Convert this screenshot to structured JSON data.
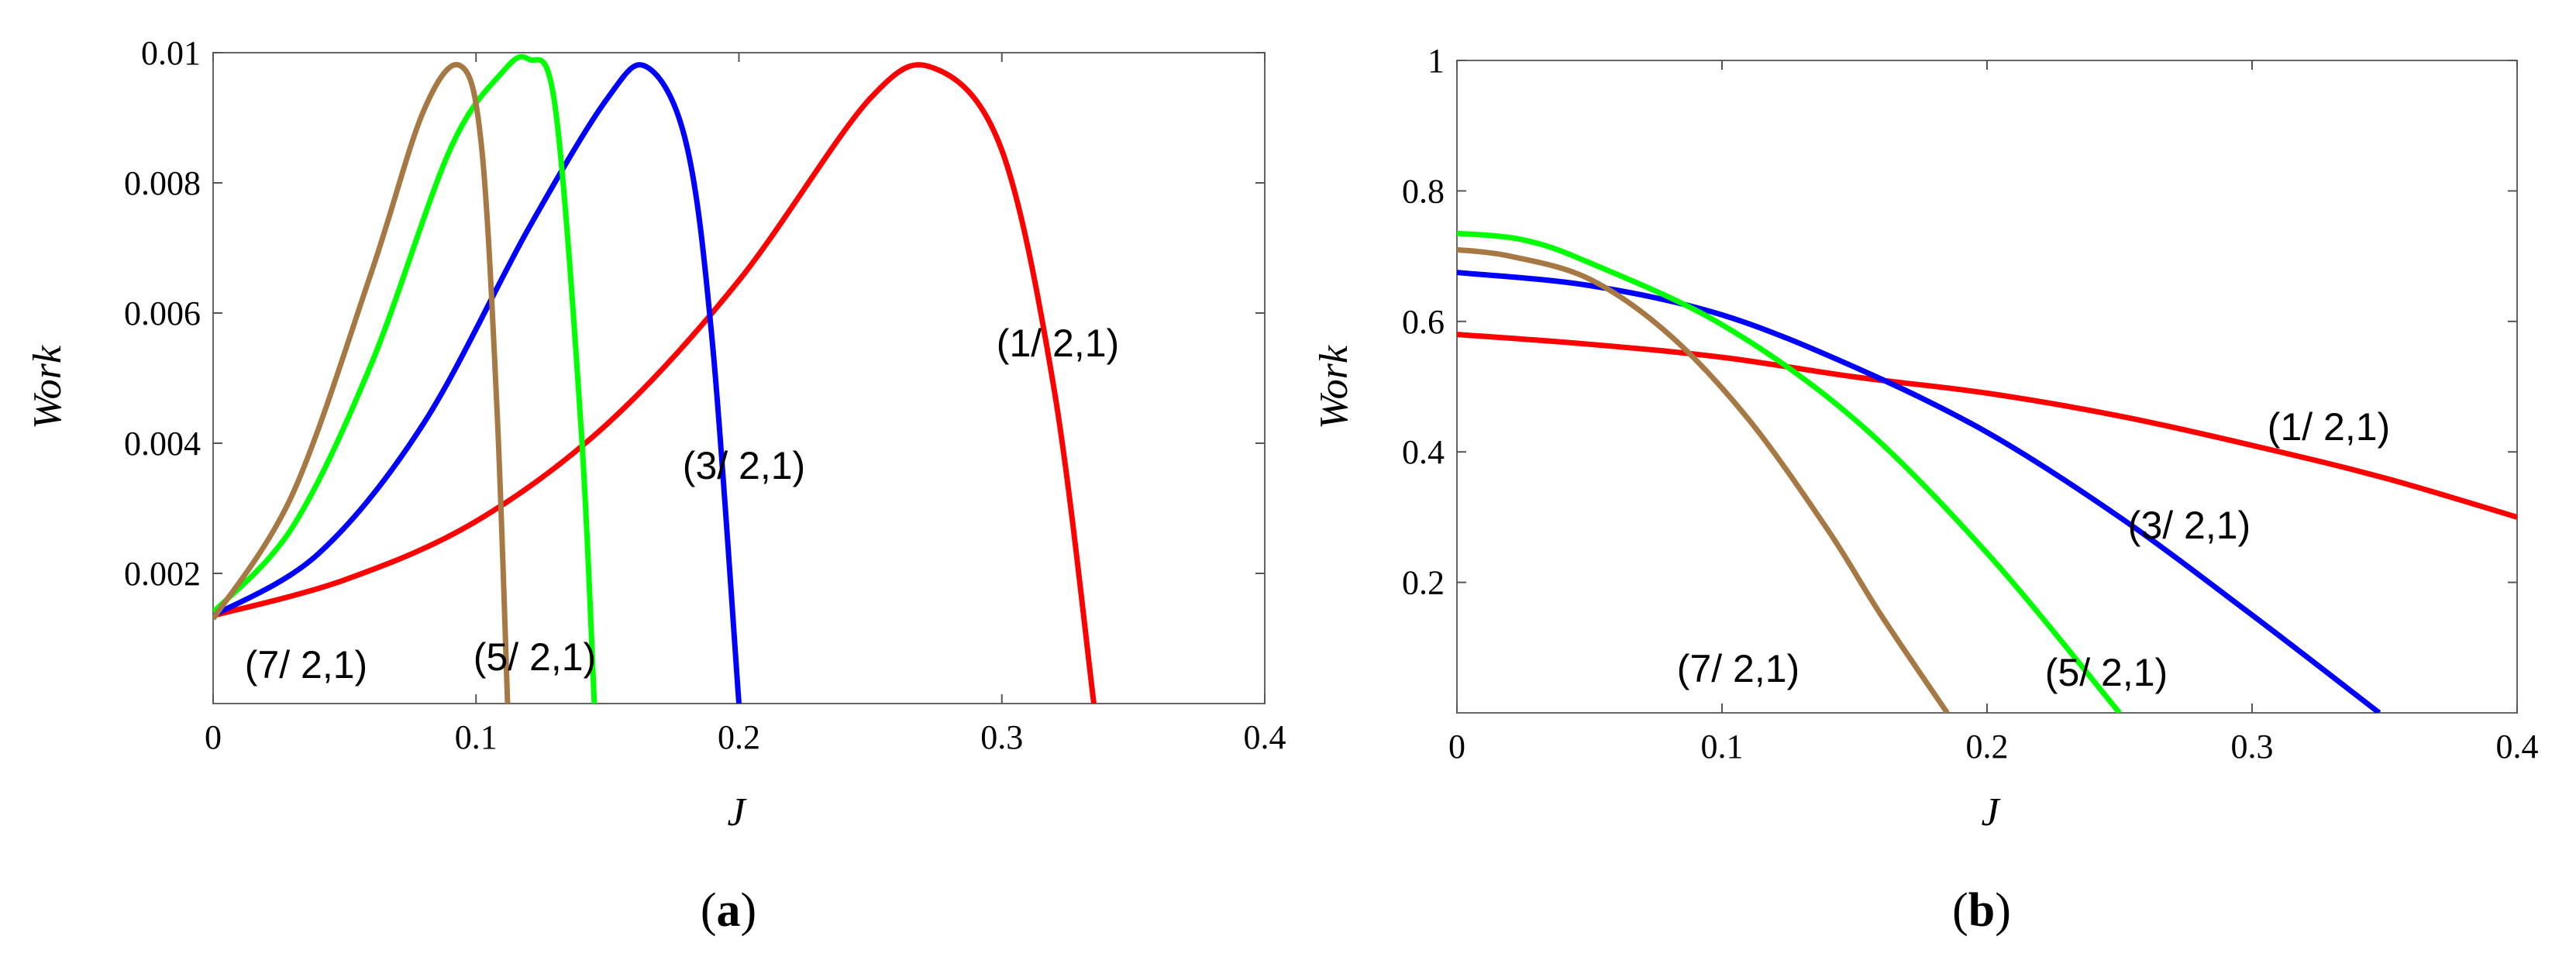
{
  "chart_data": [
    {
      "type": "line",
      "panel_label": "a",
      "xlabel": "J",
      "ylabel": "Work",
      "xlim": [
        0,
        0.4
      ],
      "ylim": [
        0,
        0.01
      ],
      "xticks": [
        "0",
        "0.1",
        "0.2",
        "0.3",
        "0.4"
      ],
      "xtick_values": [
        0,
        0.1,
        0.2,
        0.3,
        0.4
      ],
      "yticks": [
        "0.002",
        "0.004",
        "0.006",
        "0.008",
        "0.01"
      ],
      "ytick_values": [
        0.002,
        0.004,
        0.006,
        0.008,
        0.01
      ],
      "series": [
        {
          "name": "(1/ 2,1)",
          "color": "#ff0000",
          "x": [
            0,
            0.05,
            0.1,
            0.15,
            0.2,
            0.25,
            0.275,
            0.3,
            0.32,
            0.335
          ],
          "y": [
            0.00135,
            0.0019,
            0.0028,
            0.0043,
            0.0065,
            0.0093,
            0.00975,
            0.0085,
            0.0048,
            0.0
          ]
        },
        {
          "name": "(3/ 2,1)",
          "color": "#0000ff",
          "x": [
            0,
            0.04,
            0.08,
            0.12,
            0.15,
            0.165,
            0.18,
            0.19,
            0.2
          ],
          "y": [
            0.00135,
            0.0023,
            0.0043,
            0.0073,
            0.0093,
            0.00978,
            0.0086,
            0.0055,
            0.0
          ]
        },
        {
          "name": "(5/ 2,1)",
          "color": "#00ff00",
          "x": [
            0,
            0.03,
            0.06,
            0.09,
            0.11,
            0.12,
            0.13,
            0.14,
            0.145
          ],
          "y": [
            0.0014,
            0.0027,
            0.0052,
            0.0085,
            0.0097,
            0.0099,
            0.0092,
            0.0042,
            0.0
          ]
        },
        {
          "name": "(7/ 2,1)",
          "color": "#a67843",
          "x": [
            0,
            0.03,
            0.06,
            0.08,
            0.094,
            0.102,
            0.108,
            0.112
          ],
          "y": [
            0.0013,
            0.0032,
            0.0066,
            0.0091,
            0.0098,
            0.0086,
            0.0045,
            0.0
          ]
        }
      ],
      "annotations": [
        {
          "text": "(1/ 2,1)",
          "series": "(1/ 2,1)"
        },
        {
          "text": "(3/ 2,1)",
          "series": "(3/ 2,1)"
        },
        {
          "text": "(5/ 2,1)",
          "series": "(5/ 2,1)"
        },
        {
          "text": "(7/ 2,1)",
          "series": "(7/ 2,1)"
        }
      ]
    },
    {
      "type": "line",
      "panel_label": "b",
      "xlabel": "J",
      "ylabel": "Work",
      "xlim": [
        0,
        0.4
      ],
      "ylim": [
        0,
        1
      ],
      "xticks": [
        "0",
        "0.1",
        "0.2",
        "0.3",
        "0.4"
      ],
      "xtick_values": [
        0,
        0.1,
        0.2,
        0.3,
        0.4
      ],
      "yticks": [
        "0.2",
        "0.4",
        "0.6",
        "0.8",
        "1"
      ],
      "ytick_values": [
        0.2,
        0.4,
        0.6,
        0.8,
        1.0
      ],
      "series": [
        {
          "name": "(1/ 2,1)",
          "color": "#ff0000",
          "x": [
            0,
            0.05,
            0.1,
            0.15,
            0.2,
            0.25,
            0.3,
            0.35,
            0.4
          ],
          "y": [
            0.58,
            0.565,
            0.545,
            0.515,
            0.49,
            0.455,
            0.41,
            0.36,
            0.3
          ]
        },
        {
          "name": "(3/ 2,1)",
          "color": "#0000ff",
          "x": [
            0,
            0.05,
            0.1,
            0.15,
            0.2,
            0.25,
            0.3,
            0.348
          ],
          "y": [
            0.675,
            0.655,
            0.61,
            0.53,
            0.43,
            0.3,
            0.15,
            0.0
          ]
        },
        {
          "name": "(5/ 2,1)",
          "color": "#00ff00",
          "x": [
            0,
            0.025,
            0.05,
            0.1,
            0.15,
            0.2,
            0.25
          ],
          "y": [
            0.735,
            0.725,
            0.69,
            0.595,
            0.45,
            0.245,
            0.0
          ]
        },
        {
          "name": "(7/ 2,1)",
          "color": "#a67843",
          "x": [
            0,
            0.02,
            0.05,
            0.08,
            0.11,
            0.14,
            0.16,
            0.185
          ],
          "y": [
            0.71,
            0.7,
            0.665,
            0.58,
            0.45,
            0.28,
            0.15,
            0.0
          ]
        }
      ],
      "annotations": [
        {
          "text": "(1/ 2,1)",
          "series": "(1/ 2,1)"
        },
        {
          "text": "(3/ 2,1)",
          "series": "(3/ 2,1)"
        },
        {
          "text": "(5/ 2,1)",
          "series": "(5/ 2,1)"
        },
        {
          "text": "(7/ 2,1)",
          "series": "(7/ 2,1)"
        }
      ]
    }
  ]
}
